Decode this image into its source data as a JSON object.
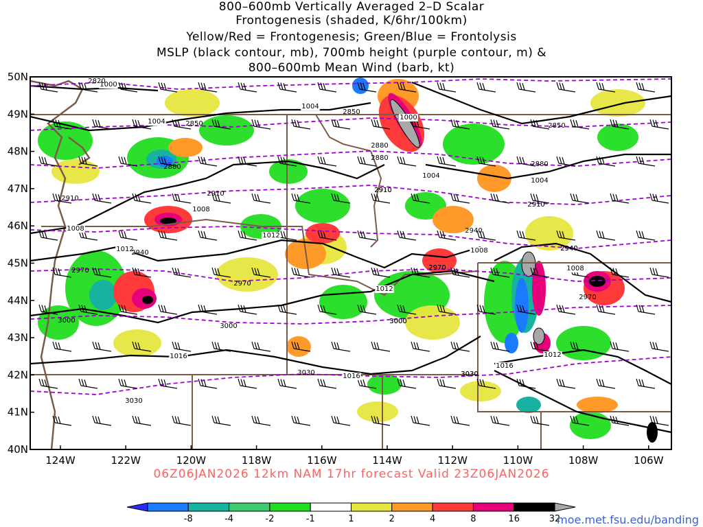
{
  "title": {
    "line1": "800–600mb Vertically Averaged 2–D Scalar",
    "line2": "Frontogenesis (shaded, K/6hr/100km)",
    "line3": "Yellow/Red = Frontogenesis;  Green/Blue = Frontolysis",
    "line4": "MSLP (black contour, mb), 700mb height (purple contour, m) &",
    "line5": "800–600mb Mean Wind (barb, kt)"
  },
  "valid_text": "06Z06JAN2026 12km NAM 17hr forecast Valid 23Z06JAN2026",
  "credit": "moe.met.fsu.edu/banding",
  "axes": {
    "lat_labels": [
      "50N",
      "49N",
      "48N",
      "47N",
      "46N",
      "45N",
      "44N",
      "43N",
      "42N",
      "41N",
      "40N"
    ],
    "lon_labels": [
      "124W",
      "122W",
      "120W",
      "118W",
      "116W",
      "114W",
      "112W",
      "110W",
      "108W",
      "106W"
    ]
  },
  "colorbar": {
    "labels": [
      "-8",
      "-4",
      "-2",
      "-1",
      "1",
      "2",
      "4",
      "8",
      "16",
      "32"
    ],
    "colors": [
      "#2b2bff",
      "#1a7bff",
      "#18b2a0",
      "#3ccc6e",
      "#22dd22",
      "#ffffff",
      "#e6e640",
      "#ff9a2a",
      "#ff3a3a",
      "#e6007a",
      "#000000",
      "#a8a8a8"
    ]
  },
  "mslp_labels": [
    "1000",
    "1004",
    "1004",
    "1008",
    "1012",
    "1012",
    "1016",
    "1016",
    "1000",
    "1004",
    "1004",
    "1008",
    "1008",
    "1012",
    "1016",
    "1012",
    "1008",
    "1004",
    "1000",
    "1008"
  ],
  "height_labels": [
    "2820",
    "2850",
    "2880",
    "2910",
    "2940",
    "2970",
    "3000",
    "3030",
    "2850",
    "2880",
    "2910",
    "2940",
    "2970",
    "3000",
    "3030",
    "2880",
    "2910",
    "2940",
    "2970",
    "3000",
    "3030",
    "2910",
    "2850",
    "2880",
    "2910",
    "2940",
    "2970",
    "2970",
    "3000",
    "3030"
  ]
}
